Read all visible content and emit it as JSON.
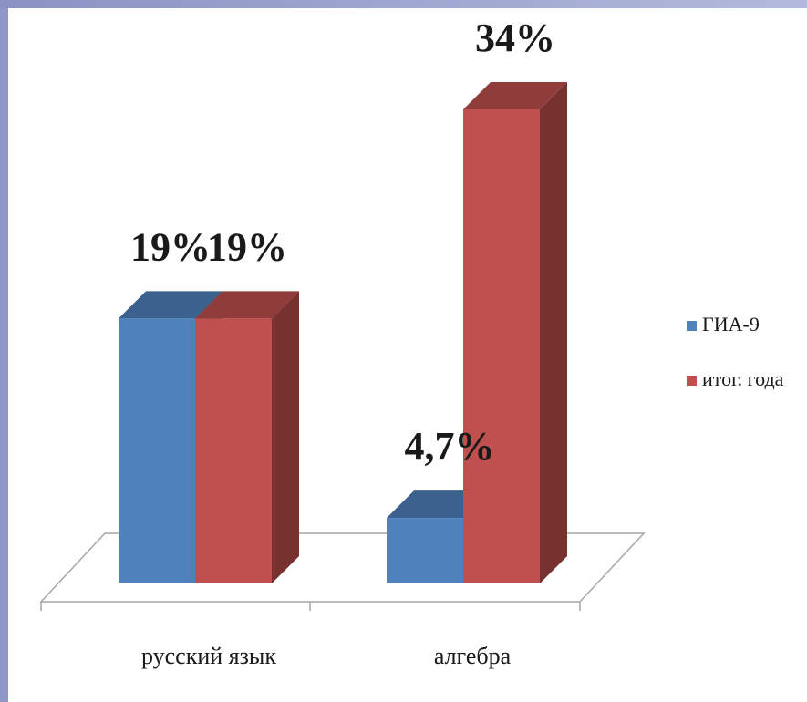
{
  "chart_data": {
    "type": "bar",
    "style": "3d-clustered",
    "categories": [
      "русский язык",
      "алгебра"
    ],
    "series": [
      {
        "name": "ГИА-9",
        "values": [
          19,
          4.7
        ],
        "labels": [
          "19%",
          "4,7%"
        ],
        "color": "#4f81bd"
      },
      {
        "name": "итог. года",
        "values": [
          19,
          34
        ],
        "labels": [
          "19%",
          "34%"
        ],
        "color": "#c0504d"
      }
    ],
    "legend": "right",
    "grid": false,
    "ylim": [
      0,
      34
    ]
  }
}
